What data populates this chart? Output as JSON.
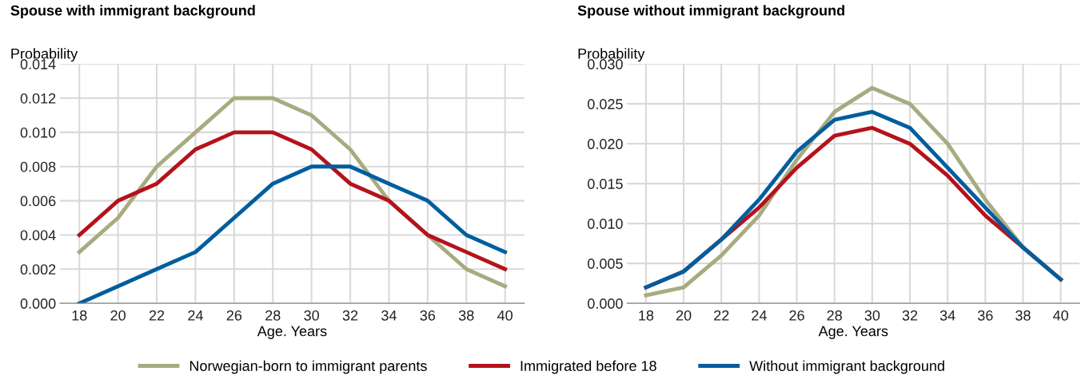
{
  "chart_data": [
    {
      "type": "line",
      "title": "Spouse with immigrant background",
      "ylabel": "Probability",
      "xlabel": "Age. Years",
      "x": [
        18,
        20,
        22,
        24,
        26,
        28,
        30,
        32,
        34,
        36,
        38,
        40
      ],
      "xlim": [
        17,
        41
      ],
      "xticks": [
        18,
        20,
        22,
        24,
        26,
        28,
        30,
        32,
        34,
        36,
        38,
        40
      ],
      "ylim": [
        0,
        0.014
      ],
      "yticks": [
        {
          "value": 0,
          "label": "0.000"
        },
        {
          "value": 0.002,
          "label": "0.002"
        },
        {
          "value": 0.004,
          "label": "0.004"
        },
        {
          "value": 0.006,
          "label": "0.006"
        },
        {
          "value": 0.008,
          "label": "0.008"
        },
        {
          "value": 0.01,
          "label": "0.010"
        },
        {
          "value": 0.012,
          "label": "0.012"
        },
        {
          "value": 0.014,
          "label": "0.014"
        }
      ],
      "grid": true,
      "legend": "bottom",
      "series": [
        {
          "name": "Norwegian-born to immigrant parents",
          "color": "#a8ab80",
          "values": [
            0.003,
            0.005,
            0.008,
            0.01,
            0.012,
            0.012,
            0.011,
            0.009,
            0.006,
            0.004,
            0.002,
            0.001
          ]
        },
        {
          "name": "Immigrated before 18",
          "color": "#b5121b",
          "values": [
            0.004,
            0.006,
            0.007,
            0.009,
            0.01,
            0.01,
            0.009,
            0.007,
            0.006,
            0.004,
            0.003,
            0.002
          ]
        },
        {
          "name": "Without immigrant background",
          "color": "#005e9e",
          "values": [
            0,
            0.001,
            0.002,
            0.003,
            0.005,
            0.007,
            0.008,
            0.008,
            0.007,
            0.006,
            0.004,
            0.003
          ]
        }
      ]
    },
    {
      "type": "line",
      "title": "Spouse without immigrant background",
      "ylabel": "Probability",
      "xlabel": "Age. Years",
      "x": [
        18,
        20,
        22,
        24,
        26,
        28,
        30,
        32,
        34,
        36,
        38,
        40
      ],
      "xlim": [
        17,
        41
      ],
      "xticks": [
        18,
        20,
        22,
        24,
        26,
        28,
        30,
        32,
        34,
        36,
        38,
        40
      ],
      "ylim": [
        0,
        0.03
      ],
      "yticks": [
        {
          "value": 0,
          "label": "0.000"
        },
        {
          "value": 0.005,
          "label": "0.005"
        },
        {
          "value": 0.01,
          "label": "0.010"
        },
        {
          "value": 0.015,
          "label": "0.015"
        },
        {
          "value": 0.02,
          "label": "0.020"
        },
        {
          "value": 0.025,
          "label": "0.025"
        },
        {
          "value": 0.03,
          "label": "0.030"
        }
      ],
      "grid": true,
      "series": [
        {
          "color": "#a8ab80",
          "values": [
            0.001,
            0.002,
            0.006,
            0.011,
            0.018,
            0.024,
            0.027,
            0.025,
            0.02,
            0.013,
            0.007,
            0.003
          ]
        },
        {
          "color": "#b5121b",
          "values": [
            0.002,
            0.004,
            0.008,
            0.012,
            0.017,
            0.021,
            0.022,
            0.02,
            0.016,
            0.011,
            0.007,
            0.003
          ]
        },
        {
          "color": "#005e9e",
          "values": [
            0.002,
            0.004,
            0.008,
            0.013,
            0.019,
            0.023,
            0.024,
            0.022,
            0.017,
            0.012,
            0.007,
            0.003
          ]
        }
      ]
    }
  ]
}
